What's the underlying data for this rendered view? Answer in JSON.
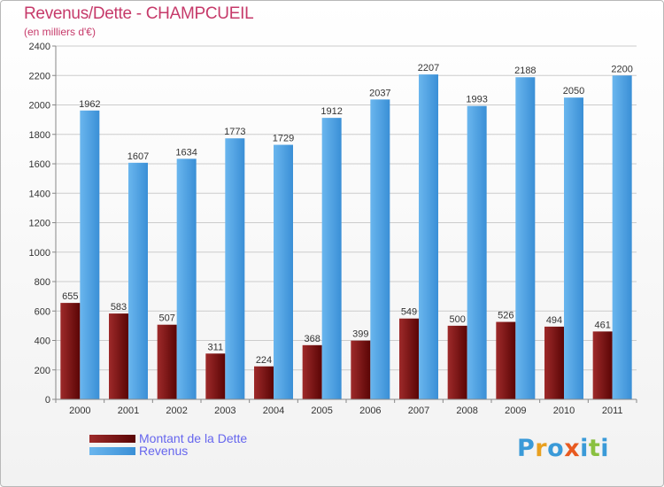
{
  "title": "Revenus/Dette - CHAMPCUEIL",
  "subtitle": "(en milliers d'€)",
  "brand": {
    "text": "Proxiti",
    "letters": [
      {
        "ch": "P",
        "color": "#3a9ad8"
      },
      {
        "ch": "r",
        "color": "#e8a020"
      },
      {
        "ch": "o",
        "color": "#3a9ad8"
      },
      {
        "ch": "x",
        "color": "#e85a20"
      },
      {
        "ch": "i",
        "color": "#3a9ad8"
      },
      {
        "ch": "t",
        "color": "#8ac040"
      },
      {
        "ch": "i",
        "color": "#3a9ad8"
      }
    ]
  },
  "colors": {
    "debt": "#6a0a0a",
    "debt_light": "#9e2a2a",
    "revenue": "#3a8fd6",
    "revenue_light": "#6ab6ee",
    "grid": "#cccccc",
    "axis_text": "#333333",
    "title": "#c63a6a",
    "legend_text": "#6666ee"
  },
  "chart_data": {
    "type": "bar",
    "categories": [
      "2000",
      "2001",
      "2002",
      "2003",
      "2004",
      "2005",
      "2006",
      "2007",
      "2008",
      "2009",
      "2010",
      "2011"
    ],
    "series": [
      {
        "name": "Montant de la Dette",
        "values": [
          655,
          583,
          507,
          311,
          224,
          368,
          399,
          549,
          500,
          526,
          494,
          461
        ]
      },
      {
        "name": "Revenus",
        "values": [
          1962,
          1607,
          1634,
          1773,
          1729,
          1912,
          2037,
          2207,
          1993,
          2188,
          2050,
          2200
        ]
      }
    ],
    "ylim": [
      0,
      2400
    ],
    "yticks": [
      "0",
      "200",
      "400",
      "600",
      "800",
      "1000",
      "1200",
      "1400",
      "1600",
      "1800",
      "2000",
      "2200",
      "2400"
    ],
    "grid": true,
    "legend_position": "bottom-left"
  }
}
